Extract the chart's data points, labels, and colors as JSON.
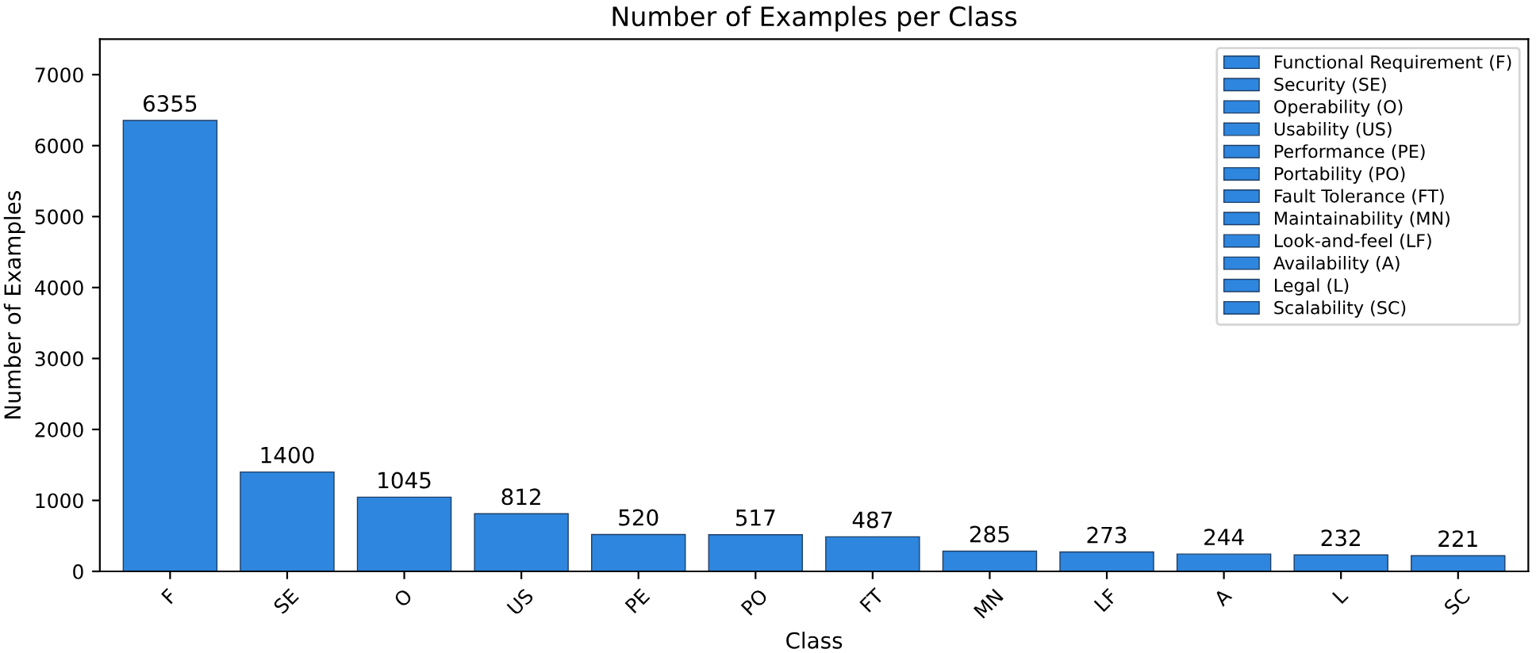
{
  "chart_data": {
    "type": "bar",
    "title": "Number of Examples per Class",
    "xlabel": "Class",
    "ylabel": "Number of Examples",
    "categories": [
      "F",
      "SE",
      "O",
      "US",
      "PE",
      "PO",
      "FT",
      "MN",
      "LF",
      "A",
      "L",
      "SC"
    ],
    "series": [
      {
        "name": "Functional Requirement (F)",
        "color": "#2e86de",
        "values": [
          6355,
          null,
          null,
          null,
          null,
          null,
          null,
          null,
          null,
          null,
          null,
          null
        ]
      },
      {
        "name": "Security (SE)",
        "color": "#2e86de",
        "values": [
          null,
          1400,
          null,
          null,
          null,
          null,
          null,
          null,
          null,
          null,
          null,
          null
        ]
      },
      {
        "name": "Operability (O)",
        "color": "#2e86de",
        "values": [
          null,
          null,
          1045,
          null,
          null,
          null,
          null,
          null,
          null,
          null,
          null,
          null
        ]
      },
      {
        "name": "Usability (US)",
        "color": "#2e86de",
        "values": [
          null,
          null,
          null,
          812,
          null,
          null,
          null,
          null,
          null,
          null,
          null,
          null
        ]
      },
      {
        "name": "Performance (PE)",
        "color": "#2e86de",
        "values": [
          null,
          null,
          null,
          null,
          520,
          null,
          null,
          null,
          null,
          null,
          null,
          null
        ]
      },
      {
        "name": "Portability (PO)",
        "color": "#2e86de",
        "values": [
          null,
          null,
          null,
          null,
          null,
          517,
          null,
          null,
          null,
          null,
          null,
          null
        ]
      },
      {
        "name": "Fault Tolerance (FT)",
        "color": "#2e86de",
        "values": [
          null,
          null,
          null,
          null,
          null,
          null,
          487,
          null,
          null,
          null,
          null,
          null
        ]
      },
      {
        "name": "Maintainability (MN)",
        "color": "#2e86de",
        "values": [
          null,
          null,
          null,
          null,
          null,
          null,
          null,
          285,
          null,
          null,
          null,
          null
        ]
      },
      {
        "name": "Look-and-feel (LF)",
        "color": "#2e86de",
        "values": [
          null,
          null,
          null,
          null,
          null,
          null,
          null,
          null,
          273,
          null,
          null,
          null
        ]
      },
      {
        "name": "Availability (A)",
        "color": "#2e86de",
        "values": [
          null,
          null,
          null,
          null,
          null,
          null,
          null,
          null,
          null,
          244,
          null,
          null
        ]
      },
      {
        "name": "Legal (L)",
        "color": "#2e86de",
        "values": [
          null,
          null,
          null,
          null,
          null,
          null,
          null,
          null,
          null,
          null,
          232,
          null
        ]
      },
      {
        "name": "Scalability (SC)",
        "color": "#2e86de",
        "values": [
          null,
          null,
          null,
          null,
          null,
          null,
          null,
          null,
          null,
          null,
          null,
          221
        ]
      }
    ],
    "ylim": [
      0,
      7500
    ],
    "yticks": [
      0,
      1000,
      2000,
      3000,
      4000,
      5000,
      6000,
      7000
    ],
    "data_labels": true,
    "legend": "top right",
    "grid": false
  }
}
